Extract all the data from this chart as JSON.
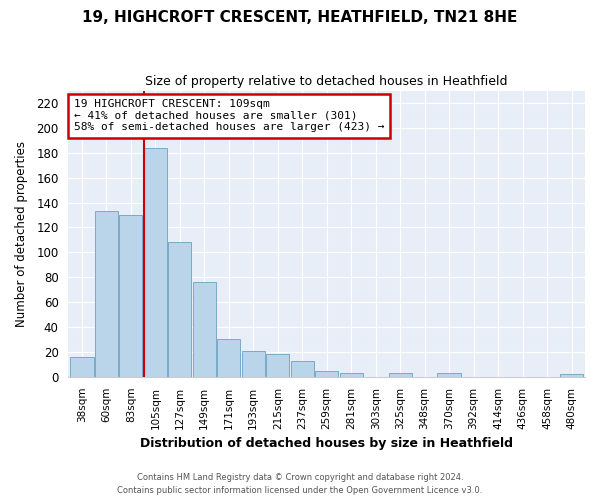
{
  "title": "19, HIGHCROFT CRESCENT, HEATHFIELD, TN21 8HE",
  "subtitle": "Size of property relative to detached houses in Heathfield",
  "xlabel": "Distribution of detached houses by size in Heathfield",
  "ylabel": "Number of detached properties",
  "bar_labels": [
    "38sqm",
    "60sqm",
    "83sqm",
    "105sqm",
    "127sqm",
    "149sqm",
    "171sqm",
    "193sqm",
    "215sqm",
    "237sqm",
    "259sqm",
    "281sqm",
    "303sqm",
    "325sqm",
    "348sqm",
    "370sqm",
    "392sqm",
    "414sqm",
    "436sqm",
    "458sqm",
    "480sqm"
  ],
  "bar_values": [
    16,
    133,
    130,
    184,
    108,
    76,
    30,
    21,
    18,
    13,
    5,
    3,
    0,
    3,
    0,
    3,
    0,
    0,
    0,
    0,
    2
  ],
  "bar_color": "#bad4ea",
  "bar_edge_color": "#7aaac8",
  "highlight_line_index": 3,
  "highlight_line_color": "#cc0000",
  "ylim": [
    0,
    230
  ],
  "yticks": [
    0,
    20,
    40,
    60,
    80,
    100,
    120,
    140,
    160,
    180,
    200,
    220
  ],
  "annotation_line1": "19 HIGHCROFT CRESCENT: 109sqm",
  "annotation_line2": "← 41% of detached houses are smaller (301)",
  "annotation_line3": "58% of semi-detached houses are larger (423) →",
  "annotation_box_color": "#ffffff",
  "annotation_box_edge": "#cc0000",
  "bg_color": "#ffffff",
  "plot_bg_color": "#e8eef8",
  "grid_color": "#ffffff",
  "footer_line1": "Contains HM Land Registry data © Crown copyright and database right 2024.",
  "footer_line2": "Contains public sector information licensed under the Open Government Licence v3.0."
}
